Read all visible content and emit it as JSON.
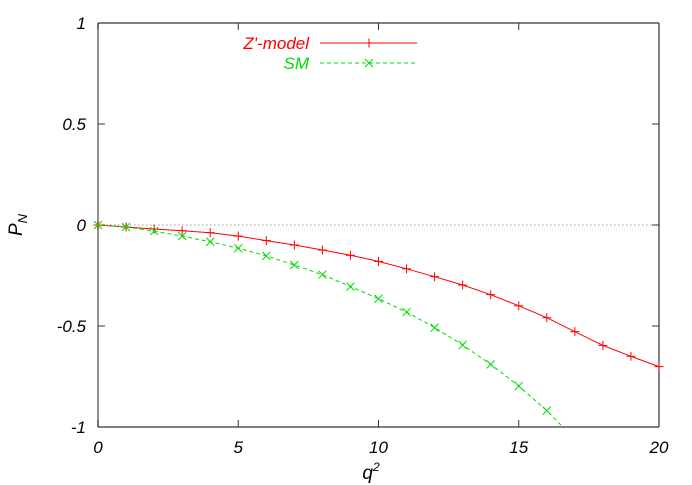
{
  "chart_data": {
    "type": "line",
    "title": "",
    "xlabel": "q^2",
    "ylabel": "P_N",
    "xlim": [
      0,
      20
    ],
    "ylim": [
      -1,
      1
    ],
    "x_ticks": [
      "0",
      "5",
      "10",
      "15",
      "20"
    ],
    "y_ticks": [
      "1",
      "0.5",
      "0",
      "-0.5",
      "-1"
    ],
    "grid": false,
    "zero_line": true,
    "legend_position": "top-center-left",
    "series": [
      {
        "name": "Z'-model",
        "color": "#ff0000",
        "style": "solid",
        "marker": "plus",
        "x": [
          0,
          1,
          2,
          3,
          4,
          5,
          6,
          7,
          8,
          9,
          10,
          11,
          12,
          13,
          14,
          15,
          16,
          17,
          18,
          19,
          20
        ],
        "values": [
          0,
          -0.01,
          -0.02,
          -0.028,
          -0.038,
          -0.055,
          -0.077,
          -0.099,
          -0.124,
          -0.15,
          -0.18,
          -0.217,
          -0.256,
          -0.297,
          -0.345,
          -0.4,
          -0.459,
          -0.528,
          -0.596,
          -0.65,
          -0.701
        ]
      },
      {
        "name": "SM",
        "color": "#00dd00",
        "style": "dashed",
        "marker": "cross",
        "x": [
          0,
          1,
          2,
          3,
          4,
          5,
          6,
          7,
          8,
          9,
          10,
          11,
          12,
          13,
          14,
          15,
          16,
          16.57
        ],
        "values": [
          0,
          -0.01,
          -0.03,
          -0.055,
          -0.083,
          -0.115,
          -0.153,
          -0.198,
          -0.246,
          -0.305,
          -0.365,
          -0.431,
          -0.508,
          -0.594,
          -0.69,
          -0.797,
          -0.919,
          -1.0
        ]
      }
    ]
  },
  "legend": {
    "items": [
      {
        "label": "Z'-model",
        "color": "#ff0000"
      },
      {
        "label": "SM",
        "color": "#00dd00"
      }
    ]
  }
}
